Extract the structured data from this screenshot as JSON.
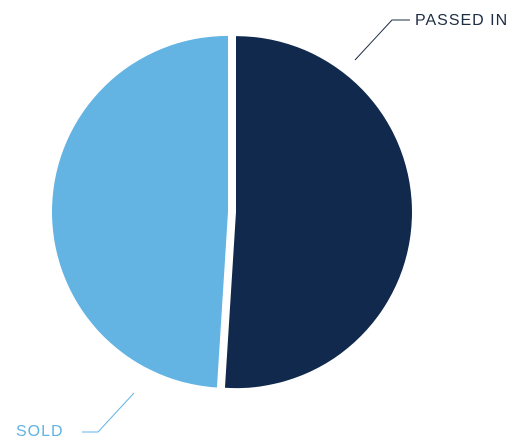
{
  "chart_data": {
    "type": "pie",
    "categories": [
      "PASSED IN",
      "SOLD"
    ],
    "values": [
      51,
      49
    ],
    "colors": [
      "#10294d",
      "#63b3e3"
    ]
  }
}
